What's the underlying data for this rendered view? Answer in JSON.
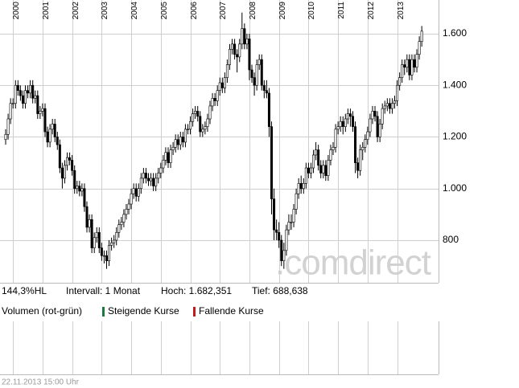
{
  "chart_data": {
    "type": "candlestick",
    "categories": [
      null,
      null,
      null,
      "2000",
      null,
      null,
      null,
      null,
      null,
      null,
      null,
      null,
      null,
      null,
      null,
      "2001",
      null,
      null,
      null,
      null,
      null,
      null,
      null,
      null,
      null,
      null,
      null,
      "2002",
      null,
      null,
      null,
      null,
      null,
      null,
      null,
      null,
      null,
      null,
      null,
      "2003",
      null,
      null,
      null,
      null,
      null,
      null,
      null,
      null,
      null,
      null,
      null,
      "2004",
      null,
      null,
      null,
      null,
      null,
      null,
      null,
      null,
      null,
      null,
      null,
      "2005",
      null,
      null,
      null,
      null,
      null,
      null,
      null,
      null,
      null,
      null,
      null,
      "2006",
      null,
      null,
      null,
      null,
      null,
      null,
      null,
      null,
      null,
      null,
      null,
      "2007",
      null,
      null,
      null,
      null,
      null,
      null,
      null,
      null,
      null,
      null,
      null,
      "2008",
      null,
      null,
      null,
      null,
      null,
      null,
      null,
      null,
      null,
      null,
      null,
      "2009",
      null,
      null,
      null,
      null,
      null,
      null,
      null,
      null,
      null,
      null,
      null,
      "2010",
      null,
      null,
      null,
      null,
      null,
      null,
      null,
      null,
      null,
      null,
      null,
      "2011",
      null,
      null,
      null,
      null,
      null,
      null,
      null,
      null,
      null,
      null,
      null,
      "2012",
      null,
      null,
      null,
      null,
      null,
      null,
      null,
      null,
      null,
      null,
      null,
      "2013",
      null,
      null,
      null,
      null,
      null,
      null,
      null,
      null,
      null,
      null
    ],
    "candles": [
      [
        1190,
        1230,
        1170,
        1210
      ],
      [
        1210,
        1290,
        1190,
        1270
      ],
      [
        1270,
        1350,
        1250,
        1330
      ],
      [
        1330,
        1350,
        1310,
        1330
      ],
      [
        1330,
        1420,
        1310,
        1400
      ],
      [
        1400,
        1420,
        1360,
        1380
      ],
      [
        1380,
        1400,
        1340,
        1360
      ],
      [
        1360,
        1380,
        1310,
        1330
      ],
      [
        1330,
        1400,
        1310,
        1380
      ],
      [
        1380,
        1400,
        1350,
        1370
      ],
      [
        1370,
        1420,
        1350,
        1400
      ],
      [
        1400,
        1420,
        1330,
        1350
      ],
      [
        1350,
        1380,
        1330,
        1360
      ],
      [
        1360,
        1380,
        1270,
        1290
      ],
      [
        1290,
        1320,
        1270,
        1300
      ],
      [
        1300,
        1330,
        1280,
        1310
      ],
      [
        1310,
        1330,
        1200,
        1220
      ],
      [
        1220,
        1240,
        1160,
        1180
      ],
      [
        1180,
        1250,
        1160,
        1230
      ],
      [
        1230,
        1270,
        1210,
        1250
      ],
      [
        1250,
        1270,
        1180,
        1200
      ],
      [
        1200,
        1220,
        1150,
        1170
      ],
      [
        1170,
        1190,
        1060,
        1080
      ],
      [
        1080,
        1100,
        1000,
        1040
      ],
      [
        1040,
        1110,
        1020,
        1090
      ],
      [
        1090,
        1140,
        1070,
        1120
      ],
      [
        1120,
        1140,
        1090,
        1110
      ],
      [
        1110,
        1130,
        1050,
        1070
      ],
      [
        1070,
        1090,
        980,
        1000
      ],
      [
        1000,
        1030,
        980,
        1010
      ],
      [
        1010,
        1030,
        970,
        990
      ],
      [
        990,
        1020,
        970,
        1000
      ],
      [
        1000,
        1020,
        910,
        930
      ],
      [
        930,
        950,
        830,
        850
      ],
      [
        850,
        900,
        830,
        880
      ],
      [
        880,
        900,
        750,
        770
      ],
      [
        770,
        830,
        750,
        810
      ],
      [
        810,
        850,
        790,
        830
      ],
      [
        830,
        850,
        750,
        770
      ],
      [
        770,
        790,
        720,
        740
      ],
      [
        740,
        760,
        710,
        740
      ],
      [
        740,
        760,
        689,
        720
      ],
      [
        720,
        800,
        700,
        780
      ],
      [
        780,
        810,
        760,
        790
      ],
      [
        790,
        820,
        770,
        800
      ],
      [
        800,
        850,
        780,
        830
      ],
      [
        830,
        880,
        810,
        860
      ],
      [
        860,
        890,
        840,
        870
      ],
      [
        870,
        920,
        850,
        900
      ],
      [
        900,
        940,
        880,
        920
      ],
      [
        920,
        960,
        900,
        940
      ],
      [
        940,
        1000,
        920,
        980
      ],
      [
        980,
        1020,
        960,
        1000
      ],
      [
        1000,
        1020,
        950,
        970
      ],
      [
        970,
        1020,
        950,
        1000
      ],
      [
        1000,
        1060,
        980,
        1040
      ],
      [
        1040,
        1080,
        1020,
        1060
      ],
      [
        1060,
        1080,
        1020,
        1040
      ],
      [
        1040,
        1060,
        1010,
        1030
      ],
      [
        1030,
        1060,
        1010,
        1040
      ],
      [
        1040,
        1060,
        990,
        1010
      ],
      [
        1010,
        1060,
        990,
        1040
      ],
      [
        1040,
        1080,
        1020,
        1060
      ],
      [
        1060,
        1100,
        1040,
        1080
      ],
      [
        1080,
        1130,
        1060,
        1110
      ],
      [
        1110,
        1160,
        1090,
        1140
      ],
      [
        1140,
        1160,
        1080,
        1100
      ],
      [
        1100,
        1170,
        1080,
        1150
      ],
      [
        1150,
        1180,
        1130,
        1160
      ],
      [
        1160,
        1210,
        1140,
        1190
      ],
      [
        1190,
        1210,
        1150,
        1170
      ],
      [
        1170,
        1220,
        1150,
        1200
      ],
      [
        1200,
        1220,
        1160,
        1180
      ],
      [
        1180,
        1250,
        1160,
        1230
      ],
      [
        1230,
        1250,
        1210,
        1230
      ],
      [
        1230,
        1280,
        1210,
        1260
      ],
      [
        1260,
        1310,
        1240,
        1290
      ],
      [
        1290,
        1320,
        1270,
        1300
      ],
      [
        1300,
        1320,
        1260,
        1280
      ],
      [
        1280,
        1300,
        1200,
        1220
      ],
      [
        1220,
        1250,
        1200,
        1230
      ],
      [
        1230,
        1260,
        1210,
        1240
      ],
      [
        1240,
        1290,
        1220,
        1270
      ],
      [
        1270,
        1340,
        1250,
        1320
      ],
      [
        1320,
        1370,
        1300,
        1350
      ],
      [
        1350,
        1370,
        1320,
        1340
      ],
      [
        1340,
        1400,
        1320,
        1380
      ],
      [
        1380,
        1430,
        1360,
        1410
      ],
      [
        1410,
        1430,
        1370,
        1390
      ],
      [
        1390,
        1450,
        1370,
        1430
      ],
      [
        1430,
        1500,
        1410,
        1480
      ],
      [
        1480,
        1560,
        1460,
        1540
      ],
      [
        1540,
        1580,
        1520,
        1560
      ],
      [
        1560,
        1580,
        1500,
        1520
      ],
      [
        1520,
        1540,
        1450,
        1510
      ],
      [
        1510,
        1580,
        1490,
        1560
      ],
      [
        1560,
        1682,
        1540,
        1620
      ],
      [
        1620,
        1640,
        1540,
        1560
      ],
      [
        1560,
        1600,
        1540,
        1580
      ],
      [
        1580,
        1600,
        1420,
        1460
      ],
      [
        1460,
        1480,
        1410,
        1430
      ],
      [
        1430,
        1450,
        1360,
        1400
      ],
      [
        1400,
        1500,
        1380,
        1480
      ],
      [
        1480,
        1520,
        1460,
        1500
      ],
      [
        1500,
        1520,
        1380,
        1400
      ],
      [
        1400,
        1420,
        1350,
        1380
      ],
      [
        1380,
        1420,
        1350,
        1370
      ],
      [
        1370,
        1390,
        1200,
        1240
      ],
      [
        1240,
        1260,
        900,
        960
      ],
      [
        960,
        1000,
        800,
        840
      ],
      [
        840,
        880,
        800,
        830
      ],
      [
        830,
        870,
        770,
        800
      ],
      [
        800,
        820,
        700,
        720
      ],
      [
        720,
        790,
        689,
        760
      ],
      [
        760,
        860,
        740,
        840
      ],
      [
        840,
        900,
        820,
        870
      ],
      [
        870,
        900,
        840,
        870
      ],
      [
        870,
        940,
        850,
        920
      ],
      [
        920,
        1000,
        900,
        980
      ],
      [
        980,
        1040,
        960,
        1020
      ],
      [
        1020,
        1050,
        980,
        1000
      ],
      [
        1000,
        1040,
        980,
        1020
      ],
      [
        1020,
        1100,
        1000,
        1080
      ],
      [
        1080,
        1100,
        1040,
        1060
      ],
      [
        1060,
        1100,
        1040,
        1080
      ],
      [
        1080,
        1150,
        1060,
        1130
      ],
      [
        1130,
        1180,
        1110,
        1150
      ],
      [
        1150,
        1170,
        1070,
        1090
      ],
      [
        1090,
        1110,
        1040,
        1060
      ],
      [
        1060,
        1110,
        1040,
        1090
      ],
      [
        1090,
        1110,
        1030,
        1050
      ],
      [
        1050,
        1130,
        1030,
        1110
      ],
      [
        1110,
        1170,
        1090,
        1150
      ],
      [
        1150,
        1180,
        1130,
        1160
      ],
      [
        1160,
        1250,
        1140,
        1230
      ],
      [
        1230,
        1260,
        1210,
        1240
      ],
      [
        1240,
        1280,
        1220,
        1260
      ],
      [
        1260,
        1280,
        1210,
        1240
      ],
      [
        1240,
        1290,
        1220,
        1270
      ],
      [
        1270,
        1310,
        1250,
        1290
      ],
      [
        1290,
        1310,
        1240,
        1280
      ],
      [
        1280,
        1300,
        1220,
        1240
      ],
      [
        1240,
        1260,
        1060,
        1100
      ],
      [
        1100,
        1120,
        1040,
        1070
      ],
      [
        1070,
        1170,
        1050,
        1150
      ],
      [
        1150,
        1180,
        1110,
        1160
      ],
      [
        1160,
        1210,
        1140,
        1190
      ],
      [
        1190,
        1240,
        1170,
        1220
      ],
      [
        1220,
        1290,
        1200,
        1270
      ],
      [
        1270,
        1320,
        1250,
        1300
      ],
      [
        1300,
        1320,
        1260,
        1280
      ],
      [
        1280,
        1300,
        1180,
        1200
      ],
      [
        1200,
        1270,
        1180,
        1250
      ],
      [
        1250,
        1330,
        1230,
        1310
      ],
      [
        1310,
        1340,
        1290,
        1320
      ],
      [
        1320,
        1350,
        1300,
        1330
      ],
      [
        1330,
        1350,
        1290,
        1310
      ],
      [
        1310,
        1350,
        1290,
        1330
      ],
      [
        1330,
        1360,
        1310,
        1340
      ],
      [
        1340,
        1420,
        1320,
        1400
      ],
      [
        1400,
        1450,
        1380,
        1430
      ],
      [
        1430,
        1500,
        1410,
        1480
      ],
      [
        1480,
        1500,
        1440,
        1470
      ],
      [
        1470,
        1520,
        1450,
        1500
      ],
      [
        1500,
        1520,
        1420,
        1440
      ],
      [
        1440,
        1520,
        1420,
        1500
      ],
      [
        1500,
        1520,
        1450,
        1470
      ],
      [
        1470,
        1540,
        1450,
        1520
      ],
      [
        1520,
        1590,
        1500,
        1570
      ],
      [
        1570,
        1630,
        1550,
        1610
      ]
    ],
    "up_color": "#ffffff",
    "down_color": "#000000",
    "ylim": [
      635,
      1684
    ],
    "yticks": [
      800,
      {
        "value": 1000,
        "label": "1.000"
      },
      {
        "value": 1200,
        "label": "1.200"
      },
      {
        "value": 1400,
        "label": "1.400"
      },
      {
        "value": 1600,
        "label": "1.600"
      }
    ],
    "grid": true,
    "watermark": ".comdirect",
    "info": [
      "144,3%HL",
      "Intervall: 1 Monat",
      "Hoch: 1.682,351",
      "Tief: 688,638"
    ],
    "volume_label": "Volumen (rot-grün)",
    "legend": [
      {
        "name": "Steigende Kurse",
        "color": "#1e7a3c"
      },
      {
        "name": "Fallende Kurse",
        "color": "#c41a1a"
      }
    ],
    "timestamp": "22.11.2013 15:00 Uhr"
  }
}
